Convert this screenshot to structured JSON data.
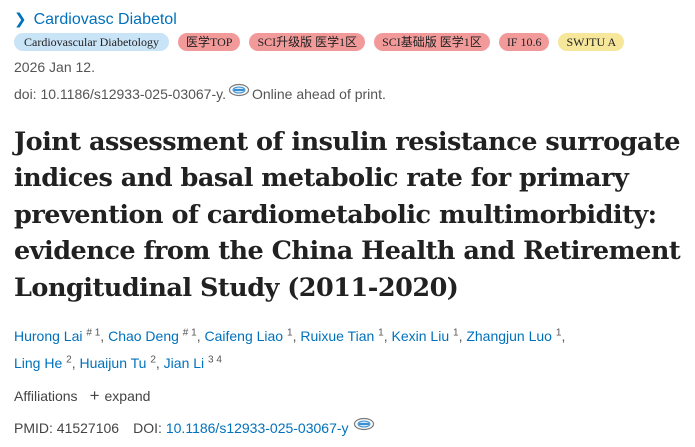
{
  "journal": {
    "name": "Cardiovasc Diabetol"
  },
  "badges": [
    {
      "label": "Cardiovascular Diabetology",
      "color": "#c9e3f7"
    },
    {
      "label": "医学TOP",
      "color": "#f29a9a"
    },
    {
      "label": "SCI升级版 医学1区",
      "color": "#f29a9a"
    },
    {
      "label": "SCI基础版 医学1区",
      "color": "#f29a9a"
    },
    {
      "label": "IF 10.6",
      "color": "#f29a9a"
    },
    {
      "label": "SWJTU A",
      "color": "#f6e79b"
    }
  ],
  "citation": {
    "date": "2026 Jan 12.",
    "doi_text": "doi: 10.1186/s12933-025-03067-y.",
    "status": "Online ahead of print."
  },
  "article": {
    "title": "Joint assessment of insulin resistance surrogate indices and basal metabolic rate for primary prevention of cardiometabolic multimorbidity: evidence from the China Health and Retirement Longitudinal Study (2011-2020)"
  },
  "authors": [
    {
      "name": "Hurong Lai",
      "sup": "# 1"
    },
    {
      "name": "Chao Deng",
      "sup": "# 1"
    },
    {
      "name": "Caifeng Liao",
      "sup": "1"
    },
    {
      "name": "Ruixue Tian",
      "sup": "1"
    },
    {
      "name": "Kexin Liu",
      "sup": "1"
    },
    {
      "name": "Zhangjun Luo",
      "sup": "1"
    },
    {
      "name": "Ling He",
      "sup": "2"
    },
    {
      "name": "Huaijun Tu",
      "sup": "2"
    },
    {
      "name": "Jian Li",
      "sup": "3 4"
    }
  ],
  "affiliations": {
    "label": "Affiliations",
    "expand_label": "expand"
  },
  "identifiers": {
    "pmid_label": "PMID:",
    "pmid": "41527106",
    "doi_label": "DOI:",
    "doi": "10.1186/s12933-025-03067-y"
  },
  "colors": {
    "link": "#0071bc",
    "badge_blue": "#c9e3f7",
    "badge_red": "#f29a9a",
    "badge_yellow": "#f6e79b"
  }
}
